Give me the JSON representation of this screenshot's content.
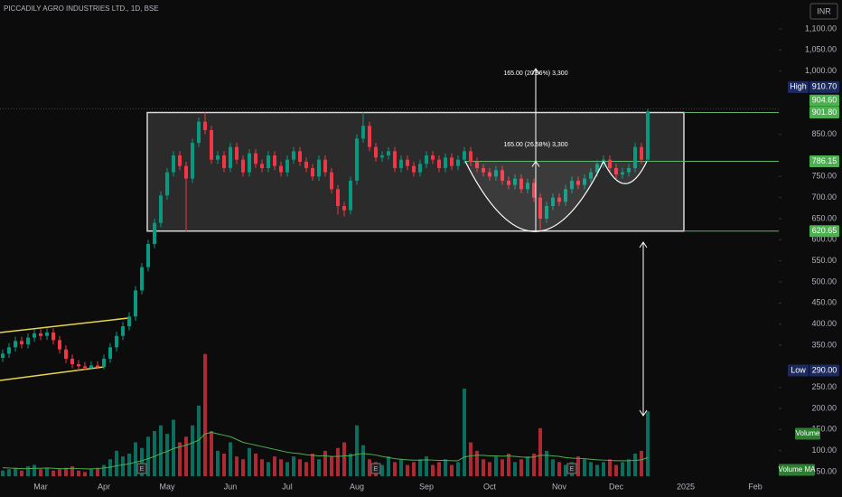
{
  "chart_data": {
    "type": "candlestick",
    "title": "PICCADILY AGRO INDUSTRIES LTD., 1D, BSE",
    "currency": "INR",
    "categories": [
      null,
      null,
      null,
      null,
      null,
      null,
      "Mar",
      null,
      null,
      null,
      null,
      null,
      null,
      null,
      null,
      null,
      "Apr",
      null,
      null,
      null,
      null,
      null,
      null,
      null,
      null,
      null,
      "May",
      null,
      null,
      null,
      null,
      null,
      null,
      null,
      null,
      null,
      "Jun",
      null,
      null,
      null,
      null,
      null,
      null,
      null,
      null,
      "Jul",
      null,
      null,
      null,
      null,
      null,
      null,
      null,
      null,
      null,
      null,
      "Aug",
      null,
      null,
      null,
      null,
      null,
      null,
      null,
      null,
      null,
      null,
      "Sep",
      null,
      null,
      null,
      null,
      null,
      null,
      null,
      null,
      null,
      "Oct",
      null,
      null,
      null,
      null,
      null,
      null,
      null,
      null,
      null,
      null,
      "Nov",
      null,
      null,
      null,
      null,
      null,
      null,
      null,
      null,
      "Dec",
      null,
      null,
      null,
      null,
      null,
      null,
      null,
      null,
      null,
      null,
      "2025",
      null,
      null,
      null,
      null,
      null,
      null,
      null,
      null,
      null,
      null,
      "Feb",
      null,
      null,
      null,
      null,
      null
    ],
    "series": {
      "open": [
        320,
        330,
        345,
        360,
        352,
        368,
        378,
        372,
        380,
        362,
        340,
        318,
        305,
        300,
        296,
        302,
        298,
        318,
        345,
        372,
        395,
        418,
        480,
        535,
        590,
        640,
        705,
        760,
        800,
        775,
        745,
        830,
        880,
        860,
        790,
        800,
        770,
        820,
        790,
        760,
        805,
        780,
        770,
        800,
        775,
        760,
        790,
        810,
        785,
        770,
        750,
        790,
        760,
        720,
        680,
        670,
        740,
        840,
        870,
        820,
        795,
        800,
        810,
        770,
        790,
        775,
        760,
        780,
        800,
        790,
        770,
        795,
        775,
        790,
        810,
        785,
        770,
        760,
        750,
        765,
        740,
        730,
        745,
        720,
        735,
        700,
        650,
        680,
        700,
        690,
        720,
        740,
        730,
        745,
        760,
        780,
        790,
        770,
        755,
        760,
        770,
        820,
        790,
        null,
        null,
        null,
        null,
        null,
        null,
        null,
        null,
        null,
        null,
        null,
        null,
        null,
        null,
        null,
        null,
        null,
        null,
        null,
        null,
        null,
        null
      ],
      "high": [
        340,
        355,
        370,
        370,
        378,
        388,
        388,
        390,
        390,
        372,
        350,
        328,
        315,
        310,
        312,
        312,
        328,
        355,
        382,
        405,
        428,
        490,
        545,
        600,
        650,
        715,
        770,
        810,
        810,
        785,
        840,
        890,
        902,
        870,
        810,
        810,
        830,
        830,
        800,
        815,
        815,
        790,
        810,
        810,
        785,
        800,
        820,
        820,
        795,
        780,
        800,
        800,
        770,
        730,
        690,
        750,
        850,
        902,
        880,
        830,
        810,
        820,
        820,
        800,
        800,
        785,
        790,
        810,
        810,
        800,
        805,
        805,
        800,
        820,
        820,
        795,
        780,
        770,
        775,
        775,
        750,
        755,
        755,
        745,
        745,
        710,
        690,
        710,
        710,
        730,
        750,
        750,
        755,
        770,
        790,
        800,
        800,
        780,
        770,
        780,
        830,
        830,
        910.7,
        null,
        null,
        null,
        null,
        null,
        null,
        null,
        null,
        null,
        null,
        null,
        null,
        null,
        null,
        null,
        null,
        null,
        null,
        null,
        null,
        null,
        null
      ],
      "low": [
        310,
        320,
        335,
        342,
        342,
        358,
        362,
        362,
        352,
        330,
        308,
        295,
        290,
        291,
        292,
        293,
        293,
        308,
        335,
        362,
        385,
        408,
        470,
        525,
        580,
        630,
        695,
        750,
        765,
        620,
        735,
        820,
        850,
        780,
        780,
        760,
        760,
        780,
        750,
        750,
        770,
        760,
        760,
        765,
        750,
        750,
        780,
        775,
        760,
        740,
        740,
        750,
        710,
        660,
        655,
        660,
        730,
        830,
        810,
        785,
        785,
        790,
        760,
        760,
        765,
        750,
        750,
        770,
        780,
        760,
        760,
        765,
        765,
        780,
        775,
        760,
        750,
        740,
        740,
        730,
        720,
        720,
        710,
        710,
        690,
        620.65,
        640,
        670,
        680,
        680,
        710,
        720,
        720,
        735,
        750,
        770,
        760,
        745,
        745,
        750,
        760,
        780,
        785,
        null,
        null,
        null,
        null,
        null,
        null,
        null,
        null,
        null,
        null,
        null,
        null,
        null,
        null,
        null,
        null,
        null,
        null,
        null,
        null,
        null,
        null
      ],
      "close": [
        330,
        345,
        360,
        352,
        368,
        378,
        372,
        380,
        362,
        340,
        318,
        305,
        300,
        296,
        302,
        298,
        318,
        345,
        372,
        395,
        418,
        480,
        535,
        590,
        640,
        705,
        760,
        800,
        775,
        745,
        830,
        880,
        860,
        790,
        800,
        770,
        820,
        790,
        760,
        805,
        780,
        770,
        800,
        775,
        760,
        790,
        810,
        785,
        770,
        750,
        790,
        760,
        720,
        680,
        670,
        740,
        840,
        870,
        820,
        795,
        800,
        810,
        770,
        790,
        775,
        760,
        780,
        800,
        790,
        770,
        795,
        775,
        790,
        810,
        785,
        770,
        760,
        750,
        765,
        740,
        730,
        745,
        720,
        735,
        700,
        650,
        680,
        700,
        690,
        720,
        740,
        730,
        745,
        760,
        780,
        790,
        770,
        755,
        760,
        770,
        820,
        790,
        904.6,
        null,
        null,
        null,
        null,
        null,
        null,
        null,
        null,
        null,
        null,
        null,
        null,
        null,
        null,
        null,
        null,
        null,
        null,
        null,
        null,
        null,
        null
      ],
      "volume": [
        20,
        25,
        30,
        20,
        35,
        40,
        25,
        30,
        20,
        25,
        30,
        35,
        20,
        15,
        25,
        30,
        40,
        60,
        90,
        70,
        80,
        120,
        100,
        140,
        160,
        180,
        150,
        200,
        120,
        140,
        180,
        250,
        433,
        160,
        90,
        80,
        120,
        70,
        60,
        100,
        80,
        60,
        50,
        70,
        60,
        50,
        70,
        60,
        50,
        80,
        60,
        90,
        70,
        100,
        120,
        80,
        180,
        110,
        60,
        50,
        40,
        70,
        50,
        60,
        40,
        50,
        60,
        70,
        40,
        50,
        60,
        40,
        50,
        310,
        120,
        90,
        60,
        50,
        70,
        60,
        80,
        50,
        60,
        70,
        80,
        170,
        90,
        60,
        50,
        40,
        50,
        70,
        60,
        50,
        40,
        50,
        60,
        40,
        50,
        60,
        80,
        90,
        230,
        null,
        null,
        null,
        null,
        null,
        null,
        null,
        null,
        null,
        null,
        null,
        null,
        null,
        null,
        null,
        null,
        null,
        null,
        null,
        null,
        null,
        null
      ],
      "volume_ma": [
        30,
        29,
        28,
        27,
        27,
        28,
        28,
        29,
        28,
        27,
        27,
        28,
        27,
        26,
        26,
        27,
        29,
        32,
        37,
        40,
        44,
        50,
        55,
        62,
        70,
        80,
        88,
        98,
        104,
        110,
        118,
        128,
        150,
        155,
        150,
        145,
        140,
        130,
        120,
        115,
        110,
        105,
        100,
        95,
        90,
        85,
        82,
        80,
        76,
        74,
        72,
        72,
        70,
        70,
        72,
        72,
        78,
        80,
        78,
        75,
        70,
        66,
        62,
        60,
        58,
        57,
        57,
        58,
        57,
        56,
        56,
        55,
        55,
        68,
        72,
        74,
        74,
        72,
        72,
        71,
        72,
        70,
        68,
        67,
        68,
        74,
        74,
        72,
        70,
        66,
        64,
        63,
        62,
        60,
        58,
        57,
        56,
        55,
        55,
        55,
        56,
        58,
        66,
        null,
        null,
        null,
        null,
        null,
        null,
        null,
        null,
        null,
        null,
        null,
        null,
        null,
        null,
        null,
        null,
        null,
        null,
        null,
        null,
        null,
        null
      ]
    },
    "up_color": "#089981",
    "down_color": "#f23645",
    "ma_color": "#4caf50",
    "ylim": [
      39.3,
      1168.6
    ],
    "yticks": [
      {
        "value": 1100,
        "label": "1,100.00"
      },
      {
        "value": 1050,
        "label": "1,050.00"
      },
      {
        "value": 1000,
        "label": "1,000.00"
      },
      {
        "value": 850,
        "label": "850.00"
      },
      {
        "value": 750,
        "label": "750.00"
      },
      {
        "value": 700,
        "label": "700.00"
      },
      {
        "value": 650,
        "label": "650.00"
      },
      {
        "value": 600,
        "label": "600.00"
      },
      {
        "value": 550,
        "label": "550.00"
      },
      {
        "value": 500,
        "label": "500.00"
      },
      {
        "value": 450,
        "label": "450.00"
      },
      {
        "value": 400,
        "label": "400.00"
      },
      {
        "value": 350,
        "label": "350.00"
      },
      {
        "value": 250,
        "label": "250.00"
      },
      {
        "value": 200,
        "label": "200.00"
      },
      {
        "value": 150,
        "label": "150.00"
      },
      {
        "value": 100,
        "label": "100.00"
      },
      {
        "value": 50,
        "label": "50.00"
      }
    ],
    "vlim": [
      0,
      480
    ],
    "grid": false,
    "box": {
      "top": 901.8,
      "bottom": 620.65
    },
    "levels": [
      901.8,
      786.15,
      620.65
    ],
    "annotations": [
      "165.00 (20.96%) 3,300",
      "165.00 (26.58%) 3,300"
    ],
    "price_tags": [
      {
        "name": "High",
        "value": 910.7,
        "label": "910.70",
        "color": "#1c2a5e"
      },
      {
        "value": 904.6,
        "label": "904.60",
        "color": "#4caf50"
      },
      {
        "value": 901.8,
        "label": "901.80",
        "color": "#4caf50"
      },
      {
        "value": 786.15,
        "label": "786.15",
        "color": "#4caf50"
      },
      {
        "value": 620.65,
        "label": "620.65",
        "color": "#4caf50"
      },
      {
        "name": "Low",
        "value": 290,
        "label": "290.00",
        "color": "#1c2a5e"
      }
    ],
    "volume_tags": [
      "Volume",
      "Volume MA"
    ],
    "earnings_marker": "E"
  }
}
